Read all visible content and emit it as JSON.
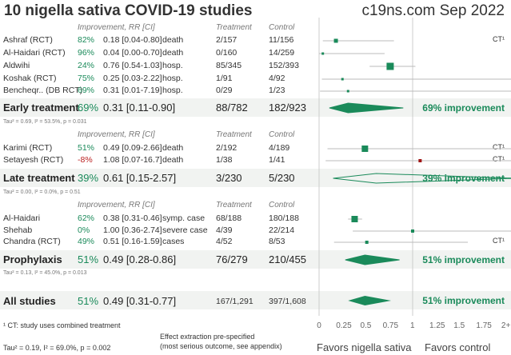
{
  "title": "10 nigella sativa COVID-19 studies",
  "site": "c19ns.com Sep 2022",
  "headers": {
    "improvement": "Improvement, RR [CI]",
    "treatment": "Treatment",
    "control": "Control"
  },
  "groups": [
    {
      "name": "Early treatment",
      "improvement": "69%",
      "rr": "0.31 [0.11-0.90]",
      "treatment": "88/782",
      "control": "182/923",
      "tau": "Tau² = 0.69, I² = 53.5%, p = 0.031",
      "summary": "69% improvement",
      "studies": [
        {
          "name": "Ashraf (RCT)",
          "improvement": "82%",
          "rr": "0.18 [0.04-0.80]",
          "outcome": "death",
          "treatment": "2/157",
          "control": "11/156",
          "ct": "CT¹"
        },
        {
          "name": "Al-Haidari (RCT)",
          "improvement": "96%",
          "rr": "0.04 [0.00-0.70]",
          "outcome": "death",
          "treatment": "0/160",
          "control": "14/259",
          "ct": ""
        },
        {
          "name": "Aldwihi",
          "improvement": "24%",
          "rr": "0.76 [0.54-1.03]",
          "outcome": "hosp.",
          "treatment": "85/345",
          "control": "152/393",
          "ct": ""
        },
        {
          "name": "Koshak (RCT)",
          "improvement": "75%",
          "rr": "0.25 [0.03-2.22]",
          "outcome": "hosp.",
          "treatment": "1/91",
          "control": "4/92",
          "ct": ""
        },
        {
          "name": "Bencheqr.. (DB RCT)",
          "improvement": "69%",
          "rr": "0.31 [0.01-7.19]",
          "outcome": "hosp.",
          "treatment": "0/29",
          "control": "1/23",
          "ct": ""
        }
      ]
    },
    {
      "name": "Late treatment",
      "improvement": "39%",
      "rr": "0.61 [0.15-2.57]",
      "treatment": "3/230",
      "control": "5/230",
      "tau": "Tau² = 0.00, I² = 0.0%, p = 0.51",
      "summary": "39% improvement",
      "studies": [
        {
          "name": "Karimi (RCT)",
          "improvement": "51%",
          "rr": "0.49 [0.09-2.66]",
          "outcome": "death",
          "treatment": "2/192",
          "control": "4/189",
          "ct": "CT¹"
        },
        {
          "name": "Setayesh (RCT)",
          "improvement": "-8%",
          "rr": "1.08 [0.07-16.7]",
          "outcome": "death",
          "treatment": "1/38",
          "control": "1/41",
          "ct": "CT¹"
        }
      ]
    },
    {
      "name": "Prophylaxis",
      "improvement": "51%",
      "rr": "0.49 [0.28-0.86]",
      "treatment": "76/279",
      "control": "210/455",
      "tau": "Tau² = 0.13, I² = 45.0%, p = 0.013",
      "summary": "51% improvement",
      "studies": [
        {
          "name": "Al-Haidari",
          "improvement": "62%",
          "rr": "0.38 [0.31-0.46]",
          "outcome": "symp. case",
          "treatment": "68/188",
          "control": "180/188",
          "ct": ""
        },
        {
          "name": "Shehab",
          "improvement": "0%",
          "rr": "1.00 [0.36-2.74]",
          "outcome": "severe case",
          "treatment": "4/39",
          "control": "22/214",
          "ct": ""
        },
        {
          "name": "Chandra (RCT)",
          "improvement": "49%",
          "rr": "0.51 [0.16-1.59]",
          "outcome": "cases",
          "treatment": "4/52",
          "control": "8/53",
          "ct": "CT¹"
        }
      ]
    }
  ],
  "all": {
    "name": "All studies",
    "improvement": "51%",
    "rr": "0.49 [0.31-0.77]",
    "treatment": "167/1,291",
    "control": "397/1,608",
    "summary": "51% improvement",
    "tau": "Tau² = 0.19, I² = 69.0%, p = 0.002"
  },
  "footnote": "¹ CT: study uses combined treatment",
  "extraction1": "Effect extraction pre-specified",
  "extraction2": "(most serious outcome, see appendix)",
  "favors_left": "Favors nigella sativa",
  "favors_right": "Favors control",
  "colors": {
    "accent": "#1a8a5a",
    "negative": "#b22222"
  },
  "chart_data": {
    "type": "forest",
    "xlim": [
      0,
      2
    ],
    "xticks": [
      "0",
      "0.25",
      "0.5",
      "0.75",
      "1",
      "1.25",
      "1.5",
      "1.75",
      "2+"
    ],
    "studies": [
      {
        "rr": 0.18,
        "lo": 0.04,
        "hi": 0.8
      },
      {
        "rr": 0.04,
        "lo": 0.0,
        "hi": 0.7
      },
      {
        "rr": 0.76,
        "lo": 0.54,
        "hi": 1.03
      },
      {
        "rr": 0.25,
        "lo": 0.03,
        "hi": 2.22
      },
      {
        "rr": 0.31,
        "lo": 0.01,
        "hi": 7.19
      },
      {
        "rr": 0.49,
        "lo": 0.09,
        "hi": 2.66
      },
      {
        "rr": 1.08,
        "lo": 0.07,
        "hi": 16.7
      },
      {
        "rr": 0.38,
        "lo": 0.31,
        "hi": 0.46
      },
      {
        "rr": 1.0,
        "lo": 0.36,
        "hi": 2.74
      },
      {
        "rr": 0.51,
        "lo": 0.16,
        "hi": 1.59
      }
    ],
    "summaries": [
      {
        "rr": 0.31,
        "lo": 0.11,
        "hi": 0.9
      },
      {
        "rr": 0.61,
        "lo": 0.15,
        "hi": 2.57
      },
      {
        "rr": 0.49,
        "lo": 0.28,
        "hi": 0.86
      },
      {
        "rr": 0.49,
        "lo": 0.31,
        "hi": 0.77
      }
    ]
  }
}
